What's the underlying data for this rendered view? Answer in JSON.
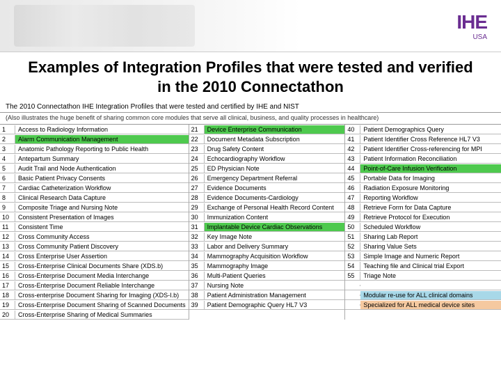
{
  "logo": {
    "main": "IHE",
    "sub": "USA"
  },
  "title": "Examples of Integration Profiles that were tested and verified in the 2010 Connectathon",
  "table_header": "The 2010 Connectathon IHE Integration Profiles that were tested and certified by IHE and NIST",
  "table_subheader": "(Also illustrates the huge benefit of sharing common core modules that serve all clinical, business, and quality processes in healthcare)",
  "highlight_colors": {
    "green": "#4ec94e",
    "lightblue": "#a8d8e8",
    "peach": "#f5c9a0"
  },
  "col1": [
    {
      "n": "1",
      "t": "Access to Radiology Information",
      "hl": ""
    },
    {
      "n": "2",
      "t": "Alarm Communication Management",
      "hl": "green"
    },
    {
      "n": "3",
      "t": "Anatomic Pathology Reporting to Public Health",
      "hl": ""
    },
    {
      "n": "4",
      "t": "Antepartum Summary",
      "hl": ""
    },
    {
      "n": "5",
      "t": "Audit Trail and Node Authentication",
      "hl": ""
    },
    {
      "n": "6",
      "t": "Basic Patient Privacy Consents",
      "hl": ""
    },
    {
      "n": "7",
      "t": "Cardiac Catheterization Workflow",
      "hl": ""
    },
    {
      "n": "8",
      "t": "Clinical Research Data Capture",
      "hl": ""
    },
    {
      "n": "9",
      "t": "Composite Triage and Nursing Note",
      "hl": ""
    },
    {
      "n": "10",
      "t": "Consistent Presentation of Images",
      "hl": ""
    },
    {
      "n": "11",
      "t": "Consistent Time",
      "hl": ""
    },
    {
      "n": "12",
      "t": "Cross Community Access",
      "hl": ""
    },
    {
      "n": "13",
      "t": "Cross Community Patient Discovery",
      "hl": ""
    },
    {
      "n": "14",
      "t": "Cross Enterprise User Assertion",
      "hl": ""
    },
    {
      "n": "15",
      "t": "Cross-Enterprise Clinical Documents Share (XDS.b)",
      "hl": ""
    },
    {
      "n": "16",
      "t": "Cross-Enterprise Document Media Interchange",
      "hl": ""
    },
    {
      "n": "17",
      "t": "Cross-Enterprise Document Reliable Interchange",
      "hl": ""
    },
    {
      "n": "18",
      "t": "Cross-enterprise Document Sharing for Imaging (XDS-I.b)",
      "hl": ""
    },
    {
      "n": "19",
      "t": "Cross-Enterprise Document Sharing of Scanned Documents",
      "hl": ""
    },
    {
      "n": "20",
      "t": "Cross-Enterprise Sharing of Medical Summaries",
      "hl": ""
    }
  ],
  "col2": [
    {
      "n": "21",
      "t": "Device Enterprise Communication",
      "hl": "green"
    },
    {
      "n": "22",
      "t": "Document Metadata Subscription",
      "hl": ""
    },
    {
      "n": "23",
      "t": "Drug Safety Content",
      "hl": ""
    },
    {
      "n": "24",
      "t": "Echocardiography Workflow",
      "hl": ""
    },
    {
      "n": "25",
      "t": "ED Physician Note",
      "hl": ""
    },
    {
      "n": "26",
      "t": "Emergency Department Referral",
      "hl": ""
    },
    {
      "n": "27",
      "t": "Evidence Documents",
      "hl": ""
    },
    {
      "n": "28",
      "t": "Evidence Documents-Cardiology",
      "hl": ""
    },
    {
      "n": "29",
      "t": "Exchange of Personal Health Record Content",
      "hl": ""
    },
    {
      "n": "30",
      "t": "Immunization Content",
      "hl": ""
    },
    {
      "n": "31",
      "t": "Implantable Device Cardiac Observations",
      "hl": "green"
    },
    {
      "n": "32",
      "t": "Key Image Note",
      "hl": ""
    },
    {
      "n": "33",
      "t": "Labor and Delivery Summary",
      "hl": ""
    },
    {
      "n": "34",
      "t": "Mammography Acquisition Workflow",
      "hl": ""
    },
    {
      "n": "35",
      "t": "Mammography Image",
      "hl": ""
    },
    {
      "n": "36",
      "t": "Multi-Patient Queries",
      "hl": ""
    },
    {
      "n": "37",
      "t": "Nursing Note",
      "hl": ""
    },
    {
      "n": "38",
      "t": "Patient Administration Management",
      "hl": ""
    },
    {
      "n": "39",
      "t": "Patient Demographic Query HL7 V3",
      "hl": ""
    }
  ],
  "col3": [
    {
      "n": "40",
      "t": "Patient Demographics Query",
      "hl": ""
    },
    {
      "n": "41",
      "t": "Patient Identifier Cross Reference HL7 V3",
      "hl": ""
    },
    {
      "n": "42",
      "t": "Patient Identifier Cross-referencing for MPI",
      "hl": ""
    },
    {
      "n": "43",
      "t": "Patient Information Reconciliation",
      "hl": ""
    },
    {
      "n": "44",
      "t": "Point-of-Care Infusion Verification",
      "hl": "green"
    },
    {
      "n": "45",
      "t": "Portable Data for Imaging",
      "hl": ""
    },
    {
      "n": "46",
      "t": "Radiation Exposure Monitoring",
      "hl": ""
    },
    {
      "n": "47",
      "t": "Reporting Workflow",
      "hl": ""
    },
    {
      "n": "48",
      "t": "Retrieve Form for Data Capture",
      "hl": ""
    },
    {
      "n": "49",
      "t": "Retrieve Protocol for Execution",
      "hl": ""
    },
    {
      "n": "50",
      "t": "Scheduled Workflow",
      "hl": ""
    },
    {
      "n": "51",
      "t": "Sharing Lab Report",
      "hl": ""
    },
    {
      "n": "52",
      "t": "Sharing Value Sets",
      "hl": ""
    },
    {
      "n": "53",
      "t": "Simple Image and Numeric Report",
      "hl": ""
    },
    {
      "n": "54",
      "t": "Teaching file and Clinical trial Export",
      "hl": ""
    },
    {
      "n": "55",
      "t": "Triage Note",
      "hl": ""
    }
  ],
  "footer": [
    {
      "t": "Modular re-use for ALL clinical domains",
      "hl": "lightblue"
    },
    {
      "t": "Specialized for ALL medical device sites",
      "hl": "peach"
    }
  ]
}
